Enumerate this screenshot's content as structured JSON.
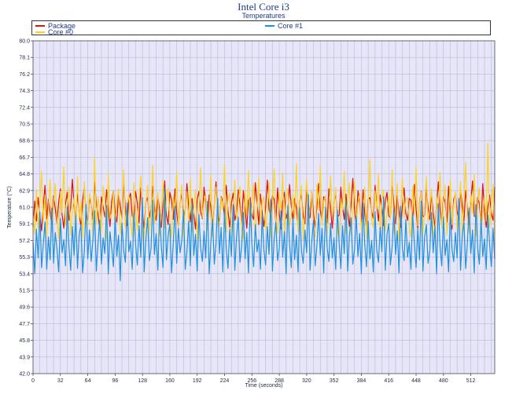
{
  "chart_data": {
    "type": "line",
    "title": "Intel Core i3",
    "subtitle": "Temperatures",
    "xlabel": "Time (seconds)",
    "ylabel": "Temperature (°C)",
    "xlim": [
      0,
      540
    ],
    "ylim": [
      42.0,
      80.0
    ],
    "x_ticks": [
      0,
      32,
      64,
      96,
      128,
      160,
      192,
      224,
      256,
      288,
      320,
      352,
      384,
      416,
      448,
      480,
      512
    ],
    "y_ticks": [
      "42.0",
      "43.9",
      "45.8",
      "47.7",
      "49.6",
      "51.5",
      "53.4",
      "55.3",
      "57.2",
      "59.1",
      "61.0",
      "62.9",
      "64.8",
      "66.7",
      "68.6",
      "70.5",
      "72.4",
      "74.3",
      "76.2",
      "78.1",
      "80.0"
    ],
    "grid": true,
    "legend_position": "top",
    "series": [
      {
        "name": "Package",
        "color": "#e01010",
        "sample_interval": 2,
        "values": [
          58.8,
          61.7,
          59.4,
          62.1,
          60.0,
          58.3,
          61.2,
          63.5,
          59.7,
          61.9,
          60.4,
          58.9,
          62.3,
          60.8,
          59.2,
          61.6,
          63.1,
          60.1,
          58.6,
          61.4,
          62.7,
          59.5,
          60.9,
          64.2,
          61.1,
          59.8,
          62.5,
          60.3,
          58.7,
          61.8,
          63.3,
          60.6,
          59.1,
          62.0,
          61.3,
          59.6,
          63.8,
          61.5,
          60.2,
          58.5,
          62.2,
          61.0,
          59.9,
          63.0,
          60.7,
          58.8,
          61.7,
          62.9,
          60.5,
          59.3,
          62.4,
          61.2,
          59.7,
          63.6,
          60.9,
          58.9,
          61.9,
          62.6,
          60.0,
          59.4,
          62.8,
          61.4,
          59.2,
          63.2,
          60.3,
          58.6,
          61.6,
          62.1,
          59.8,
          60.8,
          63.4,
          61.0,
          59.5,
          62.3,
          60.6,
          58.7,
          61.3,
          64.0,
          60.1,
          59.0,
          62.7,
          61.8,
          59.6,
          63.1,
          60.4,
          58.8,
          61.5,
          62.5,
          59.9,
          60.7,
          63.7,
          61.1,
          59.3,
          62.0,
          60.2,
          58.5,
          61.9,
          62.8,
          60.5,
          59.7,
          63.3,
          61.6,
          59.1,
          62.4,
          60.9,
          58.9,
          61.2,
          63.9,
          60.0,
          59.4,
          62.2,
          61.7,
          59.8,
          63.5,
          60.6,
          58.7,
          61.4,
          62.6,
          59.5,
          60.3,
          63.0,
          61.3,
          59.2,
          62.9,
          60.8,
          58.6,
          61.8,
          62.1,
          60.1,
          59.6,
          63.8,
          61.5,
          59.0,
          62.5,
          60.4,
          58.8,
          61.0,
          64.1,
          60.7,
          59.9,
          62.3,
          61.9,
          59.3,
          63.2,
          60.2,
          58.5,
          61.6,
          62.7,
          59.7,
          60.5,
          63.6,
          61.2,
          59.4,
          62.0,
          60.9,
          58.9,
          61.7,
          62.4,
          60.0,
          59.1,
          63.4,
          61.4,
          59.8,
          62.8,
          60.3,
          58.7,
          61.1,
          63.7,
          60.6,
          59.5,
          62.2,
          61.8,
          59.2,
          63.1,
          60.8,
          58.6,
          61.5,
          62.6,
          59.9,
          60.1,
          63.3,
          61.0,
          59.6,
          62.5,
          60.4,
          58.8,
          61.3,
          64.3,
          60.7,
          59.0,
          62.9,
          61.6,
          59.3,
          63.0,
          60.2,
          58.5,
          61.9,
          62.1,
          60.5,
          59.7,
          63.5,
          61.2,
          59.4,
          62.4,
          60.9,
          58.9,
          61.7,
          62.7,
          60.0,
          59.8,
          63.8,
          61.4,
          59.1,
          62.3,
          60.6,
          58.7,
          61.1,
          63.2,
          60.3,
          59.5,
          62.0,
          61.8,
          59.2,
          63.6,
          60.8,
          58.6,
          61.5,
          62.8,
          59.9,
          60.1,
          63.1,
          61.0,
          59.6,
          62.6,
          60.4,
          58.8,
          61.3,
          63.9,
          60.7,
          59.0,
          62.2,
          61.6,
          59.3,
          63.4,
          60.2,
          58.5,
          61.9,
          62.5,
          60.5,
          59.7,
          63.0,
          61.2,
          59.4,
          62.9,
          60.9,
          58.9,
          61.7,
          64.0,
          60.0,
          59.8,
          62.1,
          61.4,
          59.1,
          63.7,
          60.6,
          58.7,
          61.1,
          62.4,
          60.3,
          59.5,
          63.3,
          61.8,
          59.2,
          62.7,
          60.8,
          58.6,
          61.5,
          63.5,
          59.9,
          60.1,
          62.3
        ]
      },
      {
        "name": "Core #1",
        "color": "#1e90e0",
        "sample_interval": 2,
        "values": [
          57.0,
          53.4,
          58.5,
          55.2,
          60.4,
          54.1,
          56.8,
          59.3,
          53.9,
          57.6,
          55.0,
          60.9,
          54.6,
          58.1,
          56.2,
          53.6,
          59.7,
          55.8,
          57.3,
          54.3,
          61.0,
          56.5,
          53.8,
          58.8,
          55.5,
          60.1,
          54.0,
          57.9,
          59.0,
          53.5,
          56.0,
          61.3,
          55.1,
          58.4,
          54.8,
          57.2,
          60.6,
          53.7,
          56.9,
          59.5,
          54.5,
          57.5,
          55.7,
          61.2,
          53.4,
          58.2,
          56.4,
          54.2,
          60.0,
          55.4,
          57.8,
          52.6,
          59.2,
          56.1,
          54.7,
          61.5,
          55.9,
          57.1,
          53.9,
          60.3,
          56.7,
          54.4,
          58.9,
          55.3,
          62.1,
          53.6,
          57.4,
          59.8,
          54.9,
          56.3,
          61.8,
          55.6,
          58.0,
          53.8,
          60.5,
          56.6,
          54.1,
          63.2,
          55.0,
          57.7,
          59.1,
          53.5,
          56.8,
          61.1,
          54.6,
          58.6,
          55.8,
          57.2,
          60.7,
          53.9,
          56.0,
          59.4,
          54.3,
          61.4,
          55.5,
          57.9,
          53.7,
          60.2,
          56.4,
          54.8,
          58.3,
          55.2,
          61.7,
          53.4,
          57.0,
          59.6,
          54.5,
          56.9,
          62.0,
          55.7,
          58.7,
          53.6,
          60.8,
          56.2,
          54.0,
          58.5,
          55.4,
          61.3,
          53.8,
          57.6,
          59.9,
          54.7,
          56.5,
          60.4,
          55.1,
          58.1,
          53.5,
          61.6,
          56.7,
          54.2,
          59.0,
          55.9,
          57.3,
          53.9,
          60.1,
          56.1,
          54.4,
          58.8,
          55.6,
          61.9,
          53.7,
          57.4,
          59.3,
          54.9,
          56.3,
          60.6,
          55.3,
          58.2,
          53.4,
          61.2,
          56.8,
          54.1,
          59.7,
          55.0,
          57.8,
          53.6,
          60.9,
          56.0,
          54.6,
          58.4,
          55.8,
          62.4,
          53.8,
          57.1,
          59.5,
          54.3,
          56.6,
          60.3,
          55.5,
          58.6,
          53.5,
          61.0,
          56.4,
          54.8,
          59.2,
          55.2,
          57.5,
          53.9,
          60.7,
          56.9,
          54.0,
          58.9,
          55.7,
          61.8,
          53.7,
          57.7,
          59.8,
          54.5,
          56.2,
          60.0,
          55.4,
          58.0,
          53.4,
          61.5,
          56.7,
          54.2,
          59.4,
          55.1,
          57.2,
          53.6,
          60.5,
          56.1,
          54.7,
          58.7,
          55.9,
          62.2,
          53.8,
          57.9,
          59.1,
          54.4,
          56.5,
          60.8,
          55.6,
          58.3,
          53.5,
          61.1,
          56.3,
          54.9,
          59.6,
          55.3,
          57.0,
          53.9,
          60.2,
          56.8,
          54.1,
          58.5,
          55.0,
          61.7,
          53.7,
          57.6,
          59.0,
          54.6,
          56.0,
          60.4,
          55.8,
          58.8,
          53.4,
          61.4,
          56.6,
          54.3,
          59.9,
          55.5,
          57.3,
          53.6,
          60.6,
          56.2,
          54.8,
          58.1,
          55.2,
          62.0,
          53.8,
          57.8,
          59.3,
          54.0,
          56.9,
          60.9,
          55.7,
          58.4,
          53.5,
          61.3,
          56.4,
          54.5,
          59.7,
          55.4,
          57.4,
          53.9,
          60.1,
          56.7,
          54.2,
          58.6,
          55.1,
          61.6,
          53.7,
          57.1,
          59.5,
          54.7,
          56.1,
          60.3
        ]
      },
      {
        "name": "Core #0",
        "color": "#ffd21e",
        "sample_interval": 2,
        "values": [
          60.1,
          57.9,
          63.0,
          58.6,
          61.8,
          65.1,
          59.3,
          62.4,
          57.6,
          60.9,
          64.2,
          58.2,
          61.3,
          63.7,
          59.8,
          57.4,
          62.8,
          60.4,
          65.6,
          58.9,
          61.0,
          63.3,
          57.8,
          60.6,
          62.1,
          58.4,
          64.5,
          59.6,
          61.7,
          57.5,
          63.9,
          60.2,
          58.8,
          62.6,
          61.4,
          57.7,
          66.7,
          59.1,
          62.2,
          60.7,
          58.1,
          63.4,
          61.9,
          57.3,
          64.8,
          59.7,
          60.3,
          62.9,
          58.5,
          61.6,
          63.1,
          57.9,
          60.0,
          65.3,
          58.7,
          61.2,
          62.5,
          59.4,
          57.6,
          63.8,
          60.8,
          58.3,
          62.0,
          64.6,
          59.9,
          57.4,
          61.5,
          63.5,
          58.0,
          60.5,
          65.8,
          59.2,
          61.1,
          62.7,
          57.8,
          60.4,
          64.0,
          58.6,
          61.8,
          63.2,
          59.5,
          57.5,
          62.3,
          60.1,
          65.0,
          58.8,
          61.4,
          63.6,
          57.7,
          60.9,
          62.8,
          59.0,
          64.3,
          58.2,
          61.0,
          63.0,
          57.3,
          60.6,
          65.5,
          59.8,
          61.7,
          62.4,
          58.4,
          60.2,
          64.7,
          57.6,
          61.3,
          63.3,
          59.3,
          58.9,
          62.1,
          60.7,
          65.9,
          58.1,
          61.9,
          62.6,
          57.9,
          60.3,
          64.1,
          59.6,
          61.5,
          63.4,
          58.5,
          57.4,
          62.9,
          60.0,
          65.2,
          58.7,
          61.2,
          63.7,
          57.8,
          60.8,
          64.4,
          59.1,
          61.6,
          62.2,
          58.3,
          60.5,
          63.9,
          57.5,
          61.1,
          65.4,
          59.4,
          58.0,
          62.7,
          60.4,
          64.9,
          57.7,
          61.8,
          63.1,
          58.8,
          60.1,
          62.5,
          59.7,
          66.0,
          58.2,
          61.4,
          63.5,
          57.3,
          60.9,
          64.2,
          59.0,
          61.0,
          62.8,
          58.6,
          57.6,
          63.6,
          60.6,
          65.7,
          58.9,
          61.7,
          62.3,
          57.9,
          60.2,
          64.6,
          59.9,
          61.3,
          63.2,
          58.4,
          57.4,
          62.0,
          60.7,
          65.1,
          58.1,
          61.9,
          63.8,
          57.8,
          60.3,
          64.0,
          59.2,
          61.5,
          62.6,
          58.5,
          60.0,
          63.3,
          57.5,
          61.2,
          66.4,
          59.5,
          58.7,
          62.9,
          60.8,
          64.8,
          57.7,
          61.6,
          63.0,
          58.3,
          60.4,
          62.4,
          59.6,
          65.3,
          58.0,
          61.1,
          63.7,
          57.3,
          60.9,
          64.3,
          59.8,
          61.8,
          62.1,
          58.8,
          57.6,
          63.4,
          60.1,
          65.6,
          58.9,
          61.4,
          62.7,
          57.9,
          60.6,
          64.5,
          59.3,
          61.0,
          63.1,
          58.2,
          57.4,
          62.2,
          60.5,
          65.0,
          58.6,
          61.7,
          63.5,
          57.8,
          60.2,
          64.1,
          59.0,
          61.3,
          62.8,
          58.4,
          60.7,
          63.9,
          57.5,
          61.9,
          66.1,
          59.7,
          58.1,
          62.5,
          60.3,
          64.7,
          57.7,
          61.5,
          63.2,
          58.5,
          60.0,
          62.3,
          59.4,
          68.3,
          58.7,
          61.2,
          63.6,
          57.3,
          60.8,
          64.9,
          59.1,
          61.6,
          62.0
        ]
      }
    ]
  }
}
